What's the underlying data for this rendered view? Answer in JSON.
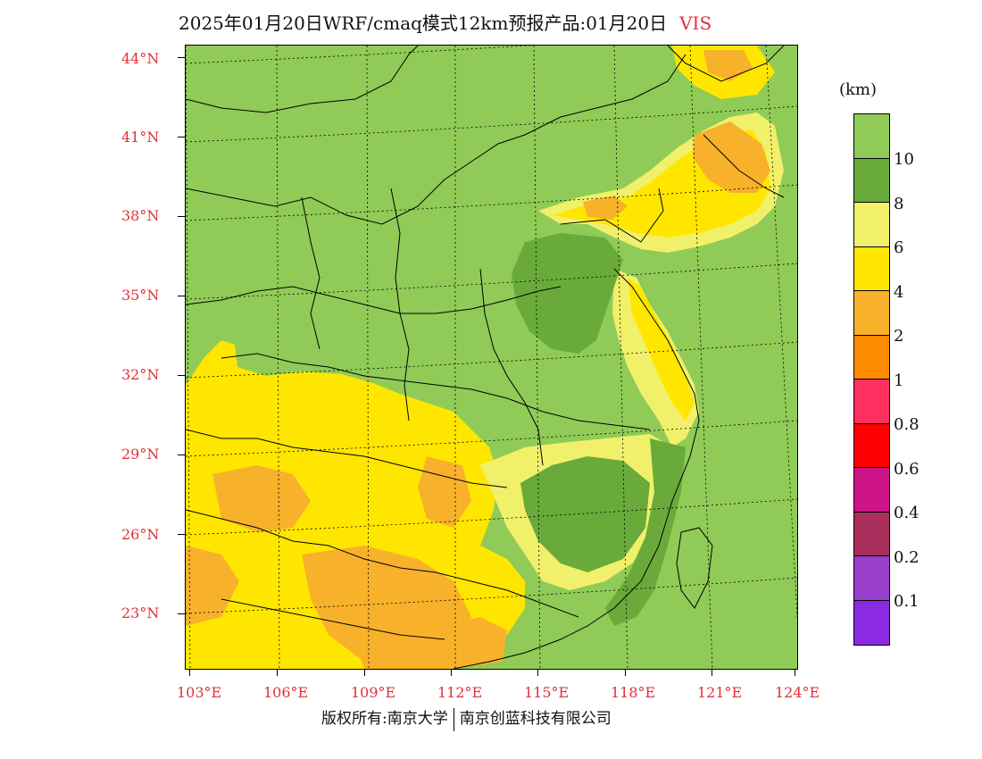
{
  "title": {
    "text": "2025年01月20日WRF/cmaq模式12km预报产品:01月20日",
    "variable": "VIS"
  },
  "map": {
    "lat_labels": [
      "44°N",
      "41°N",
      "38°N",
      "35°N",
      "32°N",
      "29°N",
      "26°N",
      "23°N"
    ],
    "lon_labels": [
      "103°E",
      "106°E",
      "109°E",
      "112°E",
      "115°E",
      "118°E",
      "121°E",
      "124°E"
    ],
    "colors": {
      "v10plus": "#8fcb56",
      "v8_10": "#6aaa3a",
      "v6_8": "#f0f06a",
      "v4_6": "#ffe600",
      "v2_4": "#f8b12a",
      "v1_2": "#ff8c00"
    }
  },
  "legend": {
    "unit": "(km)",
    "segments": [
      {
        "color": "#8fcb56"
      },
      {
        "color": "#6aaa3a"
      },
      {
        "color": "#f0f06a"
      },
      {
        "color": "#ffe600"
      },
      {
        "color": "#f8b12a"
      },
      {
        "color": "#ff8c00"
      },
      {
        "color": "#ff3060"
      },
      {
        "color": "#ff0000"
      },
      {
        "color": "#cc1488"
      },
      {
        "color": "#aa2e5c"
      },
      {
        "color": "#9a3ecc"
      },
      {
        "color": "#8a2be2"
      }
    ],
    "labels": [
      "10",
      "8",
      "6",
      "4",
      "2",
      "1",
      "0.8",
      "0.6",
      "0.4",
      "0.2",
      "0.1"
    ]
  },
  "footer": {
    "left": "版权所有:南京大学",
    "right": "南京创蓝科技有限公司"
  }
}
